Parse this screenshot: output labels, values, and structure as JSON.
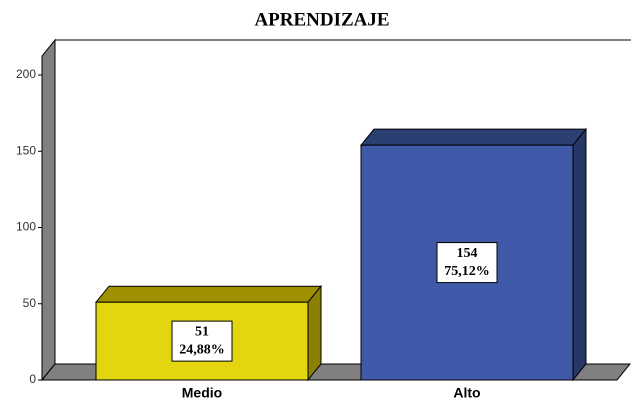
{
  "chart_data": {
    "type": "bar3d",
    "title": "APRENDIZAJE",
    "categories": [
      "Medio",
      "Alto"
    ],
    "values": [
      51,
      154
    ],
    "percent_values": [
      24.88,
      75.12
    ],
    "percent_labels": [
      "24,88%",
      "75,12%"
    ],
    "colors": [
      "#e3d510",
      "#3f58a8"
    ],
    "ylim": [
      0,
      200
    ],
    "yticks": [
      0,
      50,
      100,
      150,
      200
    ]
  }
}
